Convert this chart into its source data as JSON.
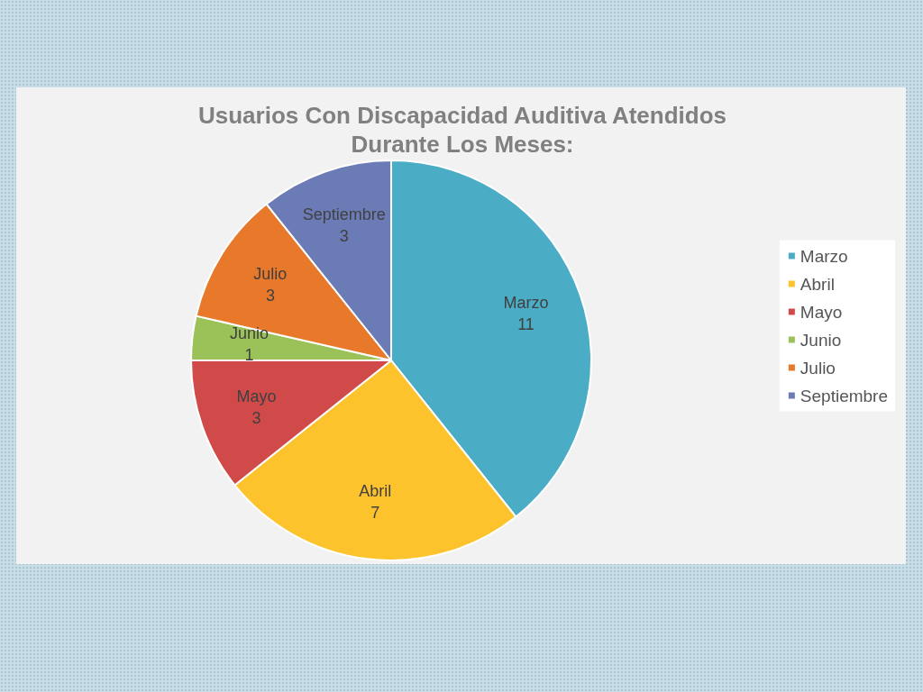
{
  "chart_data": {
    "type": "pie",
    "title": "Usuarios Con Discapacidad Auditiva Atendidos\nDurante Los Meses:",
    "categories": [
      "Marzo",
      "Abril",
      "Mayo",
      "Junio",
      "Julio",
      "Septiembre"
    ],
    "values": [
      11,
      7,
      3,
      1,
      3,
      3
    ],
    "colors": [
      "#4aacc5",
      "#fdc32d",
      "#d04a4a",
      "#9bc258",
      "#e8782a",
      "#6b7bb5"
    ],
    "data_labels": true,
    "legend": "right"
  }
}
